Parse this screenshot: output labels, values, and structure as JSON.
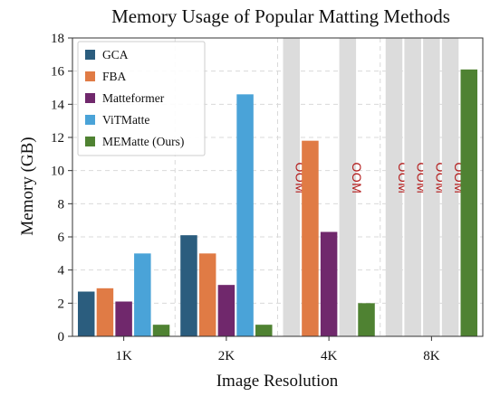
{
  "chart_data": {
    "type": "bar",
    "title": "Memory Usage of Popular Matting Methods",
    "xlabel": "Image Resolution",
    "ylabel": "Memory (GB)",
    "ylim": [
      0,
      18
    ],
    "yticks": [
      0,
      2,
      4,
      6,
      8,
      10,
      12,
      14,
      16,
      18
    ],
    "categories": [
      "1K",
      "2K",
      "4K",
      "8K"
    ],
    "grid": true,
    "legend_position": "top-left",
    "oom_label": "OOM",
    "oom_color": "#b31b1b",
    "oom_bar_color": "#dcdcdc",
    "series": [
      {
        "name": "GCA",
        "color": "#2b5d7e",
        "values": [
          2.7,
          6.1,
          null,
          null
        ]
      },
      {
        "name": "FBA",
        "color": "#e07b45",
        "values": [
          2.9,
          5.0,
          11.8,
          null
        ]
      },
      {
        "name": "Matteformer",
        "color": "#70286c",
        "values": [
          2.1,
          3.1,
          6.3,
          null
        ]
      },
      {
        "name": "ViTMatte",
        "color": "#4aa3d8",
        "values": [
          5.0,
          14.6,
          null,
          null
        ]
      },
      {
        "name": "MEMatte (Ours)",
        "color": "#4f8232",
        "values": [
          0.7,
          0.7,
          2.0,
          16.1
        ]
      }
    ]
  }
}
